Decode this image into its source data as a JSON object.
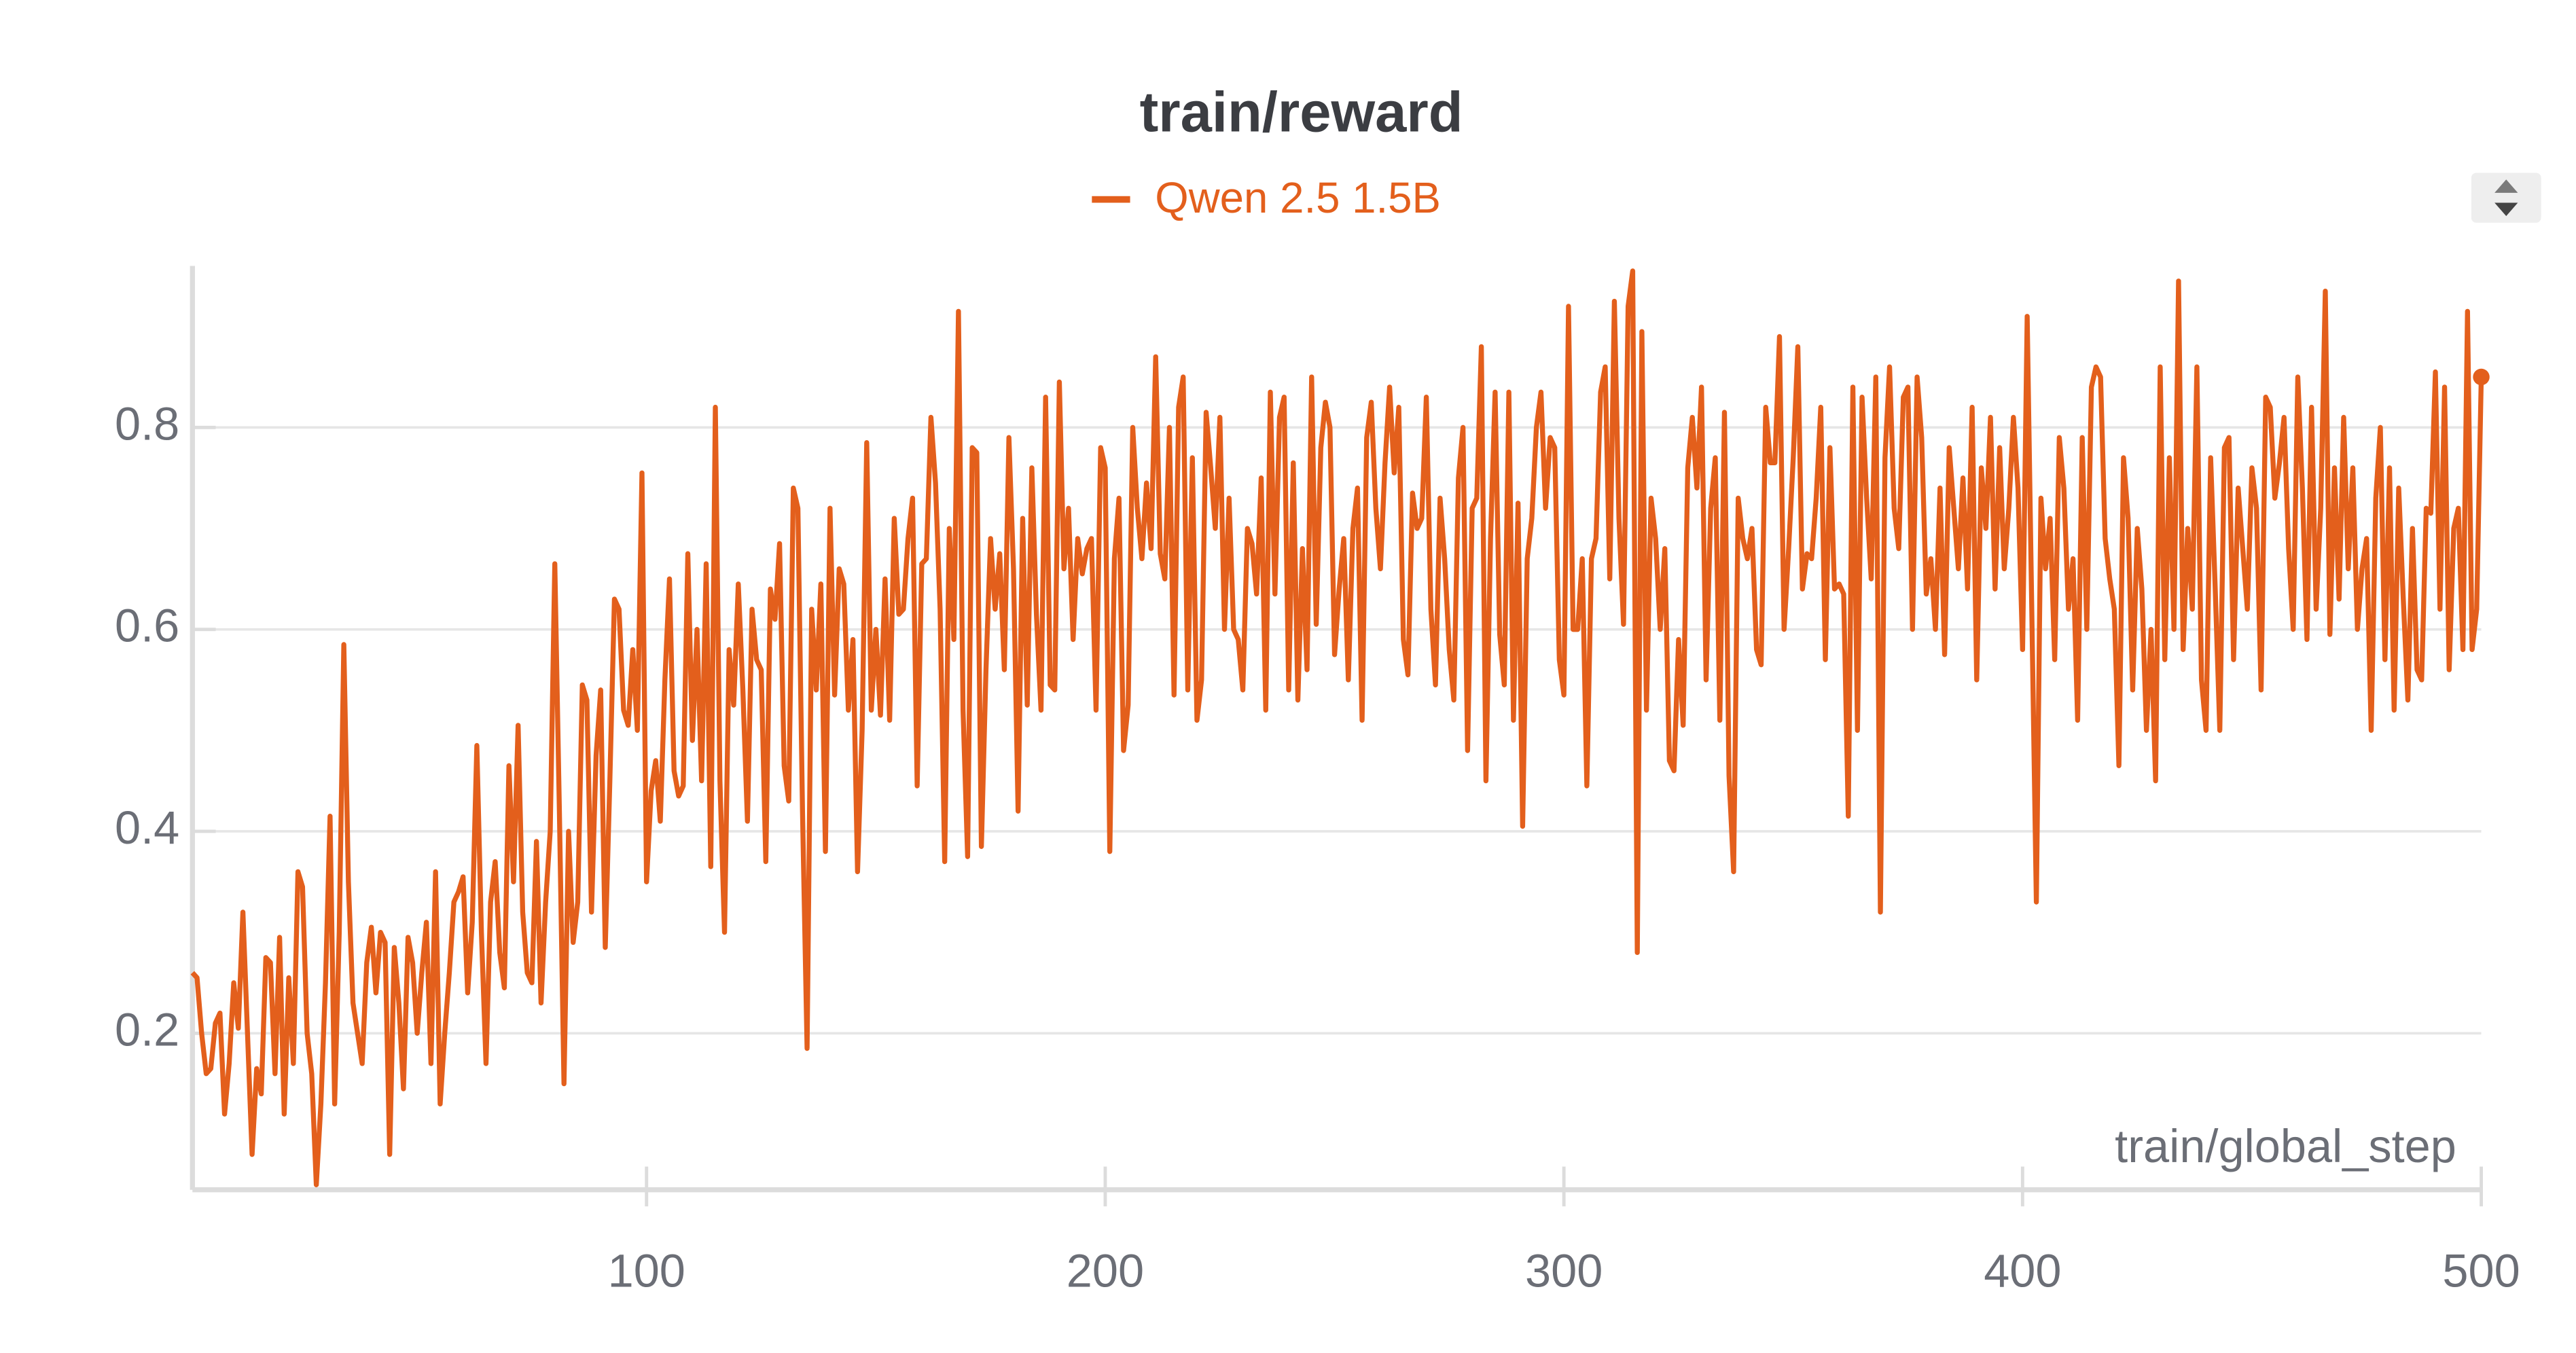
{
  "chart_data": {
    "type": "line",
    "title": "train/reward",
    "x_label": "train/global_step",
    "xlim": [
      1,
      500
    ],
    "xticks": [
      100,
      200,
      300,
      400,
      500
    ],
    "ylim": [
      0.045,
      0.96
    ],
    "yticks": [
      0.2,
      0.4,
      0.6,
      0.8
    ],
    "grid": true,
    "legend": "top",
    "x": [
      1,
      2,
      3,
      4,
      5,
      6,
      7,
      8,
      9,
      10,
      11,
      12,
      13,
      14,
      15,
      16,
      17,
      18,
      19,
      20,
      21,
      22,
      23,
      24,
      25,
      26,
      27,
      28,
      29,
      30,
      31,
      32,
      33,
      34,
      35,
      36,
      37,
      38,
      39,
      40,
      41,
      42,
      43,
      44,
      45,
      46,
      47,
      48,
      49,
      50,
      51,
      52,
      53,
      54,
      55,
      56,
      57,
      58,
      59,
      60,
      61,
      62,
      63,
      64,
      65,
      66,
      67,
      68,
      69,
      70,
      71,
      72,
      73,
      74,
      75,
      76,
      77,
      78,
      79,
      80,
      81,
      82,
      83,
      84,
      85,
      86,
      87,
      88,
      89,
      90,
      91,
      92,
      93,
      94,
      95,
      96,
      97,
      98,
      99,
      100,
      101,
      102,
      103,
      104,
      105,
      106,
      107,
      108,
      109,
      110,
      111,
      112,
      113,
      114,
      115,
      116,
      117,
      118,
      119,
      120,
      121,
      122,
      123,
      124,
      125,
      126,
      127,
      128,
      129,
      130,
      131,
      132,
      133,
      134,
      135,
      136,
      137,
      138,
      139,
      140,
      141,
      142,
      143,
      144,
      145,
      146,
      147,
      148,
      149,
      150,
      151,
      152,
      153,
      154,
      155,
      156,
      157,
      158,
      159,
      160,
      161,
      162,
      163,
      164,
      165,
      166,
      167,
      168,
      169,
      170,
      171,
      172,
      173,
      174,
      175,
      176,
      177,
      178,
      179,
      180,
      181,
      182,
      183,
      184,
      185,
      186,
      187,
      188,
      189,
      190,
      191,
      192,
      193,
      194,
      195,
      196,
      197,
      198,
      199,
      200,
      201,
      202,
      203,
      204,
      205,
      206,
      207,
      208,
      209,
      210,
      211,
      212,
      213,
      214,
      215,
      216,
      217,
      218,
      219,
      220,
      221,
      222,
      223,
      224,
      225,
      226,
      227,
      228,
      229,
      230,
      231,
      232,
      233,
      234,
      235,
      236,
      237,
      238,
      239,
      240,
      241,
      242,
      243,
      244,
      245,
      246,
      247,
      248,
      249,
      250,
      251,
      252,
      253,
      254,
      255,
      256,
      257,
      258,
      259,
      260,
      261,
      262,
      263,
      264,
      265,
      266,
      267,
      268,
      269,
      270,
      271,
      272,
      273,
      274,
      275,
      276,
      277,
      278,
      279,
      280,
      281,
      282,
      283,
      284,
      285,
      286,
      287,
      288,
      289,
      290,
      291,
      292,
      293,
      294,
      295,
      296,
      297,
      298,
      299,
      300,
      301,
      302,
      303,
      304,
      305,
      306,
      307,
      308,
      309,
      310,
      311,
      312,
      313,
      314,
      315,
      316,
      317,
      318,
      319,
      320,
      321,
      322,
      323,
      324,
      325,
      326,
      327,
      328,
      329,
      330,
      331,
      332,
      333,
      334,
      335,
      336,
      337,
      338,
      339,
      340,
      341,
      342,
      343,
      344,
      345,
      346,
      347,
      348,
      349,
      350,
      351,
      352,
      353,
      354,
      355,
      356,
      357,
      358,
      359,
      360,
      361,
      362,
      363,
      364,
      365,
      366,
      367,
      368,
      369,
      370,
      371,
      372,
      373,
      374,
      375,
      376,
      377,
      378,
      379,
      380,
      381,
      382,
      383,
      384,
      385,
      386,
      387,
      388,
      389,
      390,
      391,
      392,
      393,
      394,
      395,
      396,
      397,
      398,
      399,
      400,
      401,
      402,
      403,
      404,
      405,
      406,
      407,
      408,
      409,
      410,
      411,
      412,
      413,
      414,
      415,
      416,
      417,
      418,
      419,
      420,
      421,
      422,
      423,
      424,
      425,
      426,
      427,
      428,
      429,
      430,
      431,
      432,
      433,
      434,
      435,
      436,
      437,
      438,
      439,
      440,
      441,
      442,
      443,
      444,
      445,
      446,
      447,
      448,
      449,
      450,
      451,
      452,
      453,
      454,
      455,
      456,
      457,
      458,
      459,
      460,
      461,
      462,
      463,
      464,
      465,
      466,
      467,
      468,
      469,
      470,
      471,
      472,
      473,
      474,
      475,
      476,
      477,
      478,
      479,
      480,
      481,
      482,
      483,
      484,
      485,
      486,
      487,
      488,
      489,
      490,
      491,
      492,
      493,
      494,
      495,
      496,
      497,
      498,
      499,
      500
    ],
    "series": [
      {
        "name": "Qwen 2.5 1.5B",
        "color": "#e35f1c",
        "values": [
          0.26,
          0.255,
          0.2,
          0.16,
          0.165,
          0.21,
          0.22,
          0.12,
          0.17,
          0.25,
          0.205,
          0.32,
          0.2,
          0.08,
          0.165,
          0.14,
          0.275,
          0.27,
          0.16,
          0.295,
          0.12,
          0.255,
          0.17,
          0.36,
          0.345,
          0.2,
          0.16,
          0.05,
          0.13,
          0.25,
          0.415,
          0.13,
          0.3,
          0.585,
          0.35,
          0.23,
          0.2,
          0.17,
          0.27,
          0.305,
          0.24,
          0.3,
          0.29,
          0.08,
          0.285,
          0.23,
          0.145,
          0.295,
          0.27,
          0.2,
          0.26,
          0.31,
          0.17,
          0.36,
          0.13,
          0.2,
          0.26,
          0.33,
          0.34,
          0.355,
          0.24,
          0.31,
          0.485,
          0.3,
          0.17,
          0.33,
          0.37,
          0.28,
          0.245,
          0.465,
          0.35,
          0.505,
          0.32,
          0.26,
          0.25,
          0.39,
          0.23,
          0.33,
          0.4,
          0.665,
          0.42,
          0.15,
          0.4,
          0.29,
          0.33,
          0.545,
          0.53,
          0.32,
          0.475,
          0.54,
          0.285,
          0.45,
          0.63,
          0.62,
          0.52,
          0.505,
          0.58,
          0.5,
          0.755,
          0.35,
          0.44,
          0.47,
          0.41,
          0.55,
          0.65,
          0.46,
          0.435,
          0.445,
          0.675,
          0.49,
          0.6,
          0.45,
          0.665,
          0.365,
          0.82,
          0.45,
          0.3,
          0.58,
          0.525,
          0.645,
          0.54,
          0.41,
          0.62,
          0.57,
          0.56,
          0.37,
          0.64,
          0.61,
          0.685,
          0.465,
          0.43,
          0.74,
          0.72,
          0.42,
          0.185,
          0.62,
          0.54,
          0.645,
          0.38,
          0.72,
          0.535,
          0.66,
          0.645,
          0.52,
          0.59,
          0.36,
          0.5,
          0.785,
          0.52,
          0.6,
          0.515,
          0.65,
          0.51,
          0.71,
          0.615,
          0.62,
          0.69,
          0.73,
          0.445,
          0.665,
          0.67,
          0.81,
          0.745,
          0.62,
          0.37,
          0.7,
          0.59,
          0.915,
          0.52,
          0.375,
          0.78,
          0.775,
          0.385,
          0.56,
          0.69,
          0.62,
          0.675,
          0.56,
          0.79,
          0.66,
          0.42,
          0.71,
          0.525,
          0.76,
          0.615,
          0.52,
          0.83,
          0.545,
          0.54,
          0.845,
          0.66,
          0.72,
          0.59,
          0.69,
          0.655,
          0.68,
          0.69,
          0.52,
          0.78,
          0.76,
          0.38,
          0.67,
          0.73,
          0.48,
          0.525,
          0.8,
          0.72,
          0.67,
          0.745,
          0.68,
          0.87,
          0.675,
          0.65,
          0.8,
          0.535,
          0.82,
          0.85,
          0.54,
          0.77,
          0.51,
          0.55,
          0.815,
          0.76,
          0.7,
          0.81,
          0.6,
          0.73,
          0.6,
          0.59,
          0.54,
          0.7,
          0.685,
          0.635,
          0.75,
          0.52,
          0.835,
          0.635,
          0.81,
          0.83,
          0.54,
          0.765,
          0.53,
          0.68,
          0.56,
          0.85,
          0.605,
          0.78,
          0.825,
          0.8,
          0.575,
          0.64,
          0.69,
          0.55,
          0.7,
          0.74,
          0.51,
          0.79,
          0.825,
          0.72,
          0.66,
          0.765,
          0.84,
          0.755,
          0.82,
          0.59,
          0.555,
          0.735,
          0.7,
          0.71,
          0.83,
          0.62,
          0.545,
          0.73,
          0.67,
          0.58,
          0.53,
          0.75,
          0.8,
          0.48,
          0.72,
          0.73,
          0.88,
          0.45,
          0.69,
          0.835,
          0.595,
          0.545,
          0.835,
          0.51,
          0.725,
          0.405,
          0.67,
          0.71,
          0.8,
          0.835,
          0.72,
          0.79,
          0.78,
          0.57,
          0.535,
          0.92,
          0.6,
          0.6,
          0.67,
          0.445,
          0.67,
          0.69,
          0.835,
          0.86,
          0.65,
          0.925,
          0.71,
          0.605,
          0.92,
          0.955,
          0.28,
          0.895,
          0.52,
          0.73,
          0.69,
          0.6,
          0.68,
          0.47,
          0.46,
          0.59,
          0.505,
          0.76,
          0.81,
          0.74,
          0.84,
          0.55,
          0.72,
          0.77,
          0.51,
          0.815,
          0.455,
          0.36,
          0.73,
          0.69,
          0.67,
          0.7,
          0.58,
          0.565,
          0.82,
          0.765,
          0.765,
          0.89,
          0.6,
          0.68,
          0.77,
          0.88,
          0.64,
          0.675,
          0.67,
          0.73,
          0.82,
          0.57,
          0.78,
          0.64,
          0.645,
          0.635,
          0.415,
          0.84,
          0.5,
          0.83,
          0.73,
          0.65,
          0.85,
          0.32,
          0.77,
          0.86,
          0.72,
          0.68,
          0.83,
          0.84,
          0.6,
          0.85,
          0.79,
          0.635,
          0.67,
          0.6,
          0.74,
          0.575,
          0.78,
          0.72,
          0.66,
          0.75,
          0.64,
          0.82,
          0.55,
          0.76,
          0.7,
          0.81,
          0.64,
          0.78,
          0.66,
          0.72,
          0.81,
          0.74,
          0.58,
          0.91,
          0.62,
          0.33,
          0.73,
          0.66,
          0.71,
          0.57,
          0.79,
          0.74,
          0.62,
          0.67,
          0.51,
          0.79,
          0.6,
          0.84,
          0.86,
          0.85,
          0.69,
          0.65,
          0.62,
          0.465,
          0.77,
          0.71,
          0.54,
          0.7,
          0.64,
          0.5,
          0.6,
          0.45,
          0.86,
          0.57,
          0.77,
          0.6,
          0.945,
          0.58,
          0.7,
          0.62,
          0.86,
          0.55,
          0.5,
          0.77,
          0.64,
          0.5,
          0.78,
          0.79,
          0.57,
          0.74,
          0.68,
          0.62,
          0.76,
          0.72,
          0.54,
          0.83,
          0.82,
          0.73,
          0.765,
          0.81,
          0.68,
          0.6,
          0.85,
          0.74,
          0.59,
          0.82,
          0.62,
          0.72,
          0.935,
          0.595,
          0.76,
          0.63,
          0.81,
          0.66,
          0.76,
          0.6,
          0.66,
          0.69,
          0.5,
          0.73,
          0.8,
          0.57,
          0.76,
          0.52,
          0.74,
          0.63,
          0.53,
          0.7,
          0.56,
          0.55,
          0.72,
          0.715,
          0.855,
          0.62,
          0.84,
          0.56,
          0.7,
          0.72,
          0.58,
          0.915,
          0.58,
          0.62,
          0.85
        ]
      }
    ]
  }
}
